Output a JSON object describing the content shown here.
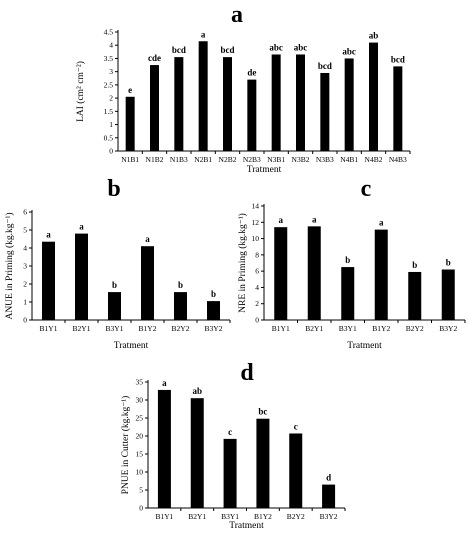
{
  "chart_data": [
    {
      "id": "a",
      "type": "bar",
      "panel_label": "a",
      "title": "",
      "xlabel": "Tratment",
      "ylabel": "LAI (cm² cm⁻²)",
      "ylim": [
        0,
        4.5
      ],
      "yticks": [
        0,
        0.5,
        1,
        1.5,
        2,
        2.5,
        3,
        3.5,
        4,
        4.5
      ],
      "ytick_labels": [
        "0",
        "0.5",
        "1",
        "1.5",
        "2",
        "2.5",
        "3",
        "3.5",
        "4",
        "4.5"
      ],
      "grid": false,
      "bar_color": "#000000",
      "categories": [
        "N1B1",
        "N1B2",
        "N1B3",
        "N2B1",
        "N2B2",
        "N2B3",
        "N3B1",
        "N3B2",
        "N3B3",
        "N4B1",
        "N4B2",
        "N4B3"
      ],
      "values": [
        2.05,
        3.25,
        3.55,
        4.15,
        3.55,
        2.7,
        3.65,
        3.65,
        2.95,
        3.5,
        4.1,
        3.2
      ],
      "data_labels": [
        "e",
        "cde",
        "bcd",
        "a",
        "bcd",
        "de",
        "abc",
        "abc",
        "bcd",
        "abc",
        "ab",
        "bcd"
      ]
    },
    {
      "id": "b",
      "type": "bar",
      "panel_label": "b",
      "title": "",
      "xlabel": "Tratment",
      "ylabel": "ANUE in Priming (kg.kg⁻¹)",
      "ylim": [
        0,
        6
      ],
      "yticks": [
        0,
        1,
        2,
        3,
        4,
        5,
        6
      ],
      "ytick_labels": [
        "0",
        "1",
        "2",
        "3",
        "4",
        "5",
        "6"
      ],
      "grid": false,
      "bar_color": "#000000",
      "categories": [
        "B1Y1",
        "B2Y1",
        "B3Y1",
        "B1Y2",
        "B2Y2",
        "B3Y2"
      ],
      "values": [
        4.35,
        4.8,
        1.55,
        4.1,
        1.55,
        1.05
      ],
      "data_labels": [
        "a",
        "a",
        "b",
        "a",
        "b",
        "b"
      ]
    },
    {
      "id": "c",
      "type": "bar",
      "panel_label": "c",
      "title": "",
      "xlabel": "Tratment",
      "ylabel": "NRE in Priming (kg.kg⁻¹)",
      "ylim": [
        0,
        14
      ],
      "yticks": [
        0,
        2,
        4,
        6,
        8,
        10,
        12,
        14
      ],
      "ytick_labels": [
        "0",
        "2",
        "4",
        "6",
        "8",
        "10",
        "12",
        "14"
      ],
      "grid": false,
      "bar_color": "#000000",
      "categories": [
        "B1Y1",
        "B2Y1",
        "B3Y1",
        "B1Y2",
        "B2Y2",
        "B3Y2"
      ],
      "values": [
        11.4,
        11.5,
        6.5,
        11.1,
        5.9,
        6.2
      ],
      "data_labels": [
        "a",
        "a",
        "b",
        "a",
        "b",
        "b"
      ]
    },
    {
      "id": "d",
      "type": "bar",
      "panel_label": "d",
      "title": "",
      "xlabel": "Tratment",
      "ylabel": "PNUE in Cutter (kg.kg⁻¹)",
      "ylim": [
        0,
        35
      ],
      "yticks": [
        0,
        5,
        10,
        15,
        20,
        25,
        30,
        35
      ],
      "ytick_labels": [
        "0",
        "5",
        "10",
        "15",
        "20",
        "25",
        "30",
        "35"
      ],
      "grid": false,
      "bar_color": "#000000",
      "categories": [
        "B1Y1",
        "B2Y1",
        "B3Y1",
        "B1Y2",
        "B2Y2",
        "B3Y2"
      ],
      "values": [
        32.8,
        30.5,
        19.2,
        24.8,
        20.7,
        6.5
      ],
      "data_labels": [
        "a",
        "ab",
        "c",
        "bc",
        "c",
        "d"
      ]
    }
  ]
}
